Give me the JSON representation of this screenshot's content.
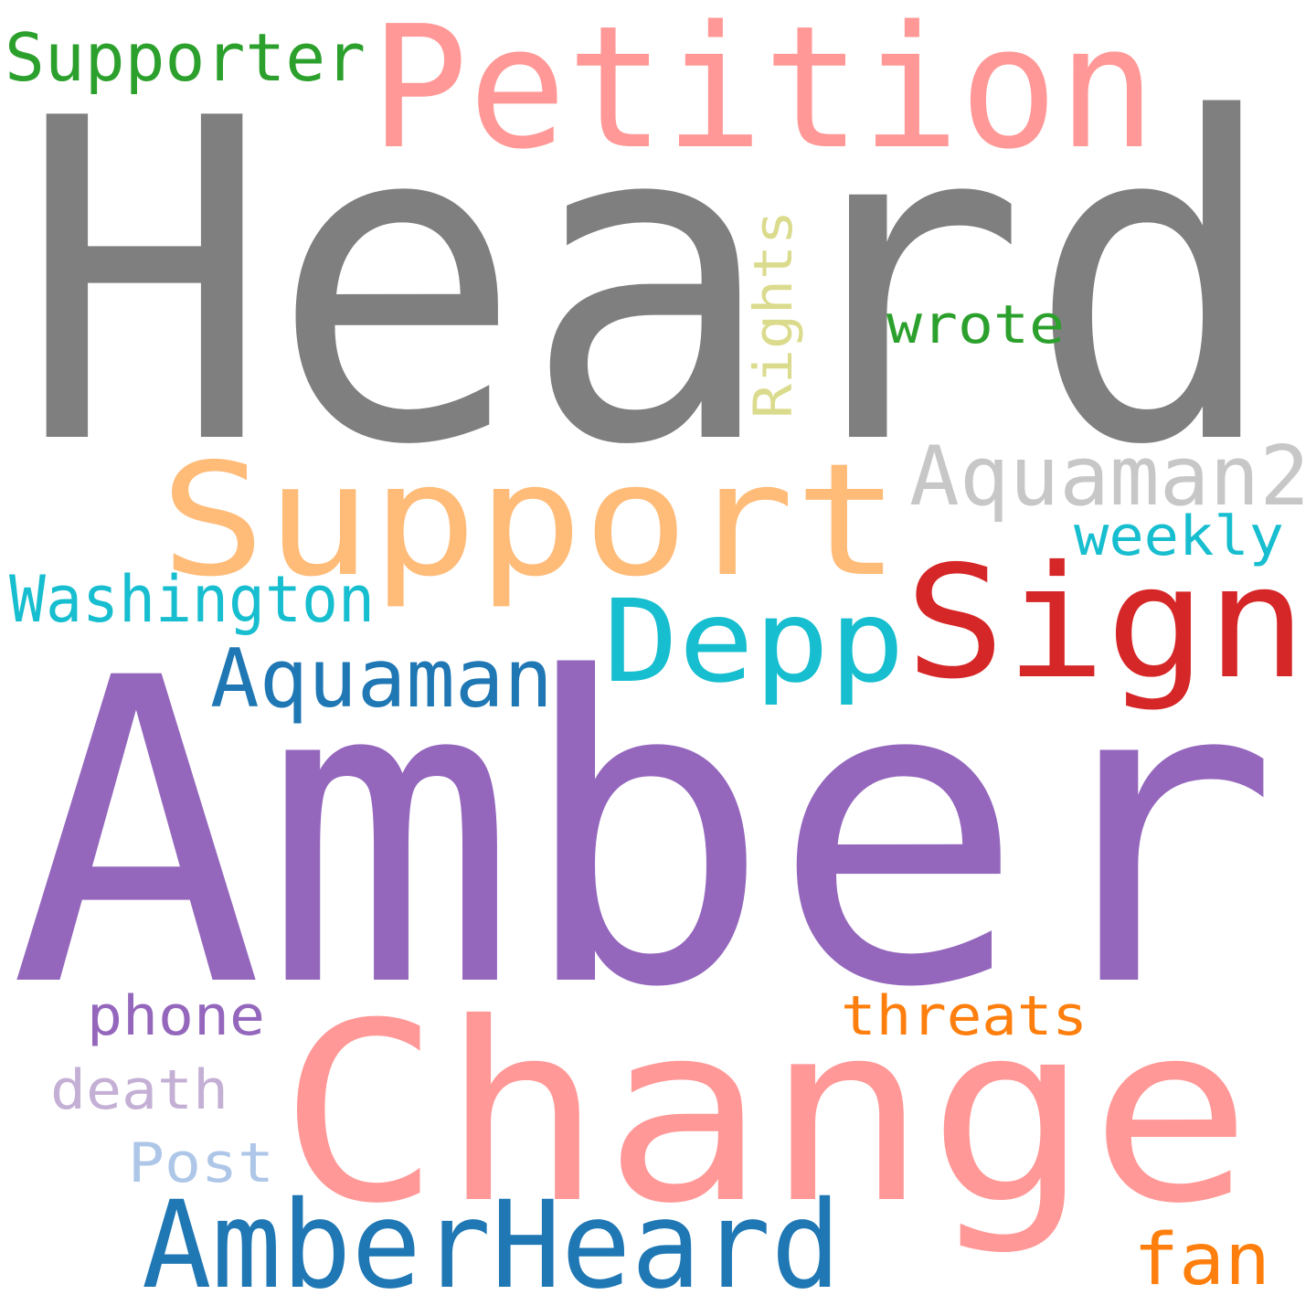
{
  "words": [
    {
      "text": "Heard",
      "color": "#7f7f7f"
    },
    {
      "text": "Amber",
      "color": "#9467bd"
    },
    {
      "text": "Change",
      "color": "#ff9896"
    },
    {
      "text": "Petition",
      "color": "#ff9896"
    },
    {
      "text": "Support",
      "color": "#ffbb78"
    },
    {
      "text": "Sign",
      "color": "#d62728"
    },
    {
      "text": "Depp",
      "color": "#17becf"
    },
    {
      "text": "AmberHeard",
      "color": "#1f77b4"
    },
    {
      "text": "Aquaman2",
      "color": "#c7c7c7"
    },
    {
      "text": "Aquaman",
      "color": "#1f77b4"
    },
    {
      "text": "Supporter",
      "color": "#2ca02c"
    },
    {
      "text": "Washington",
      "color": "#17becf"
    },
    {
      "text": "weekly",
      "color": "#17becf"
    },
    {
      "text": "wrote",
      "color": "#2ca02c"
    },
    {
      "text": "Rights",
      "color": "#dbdb8d"
    },
    {
      "text": "threats",
      "color": "#ff7f0e"
    },
    {
      "text": "phone",
      "color": "#9467bd"
    },
    {
      "text": "death",
      "color": "#c5b0d5"
    },
    {
      "text": "Post",
      "color": "#aec7e8"
    },
    {
      "text": "fan",
      "color": "#ff7f0e"
    }
  ]
}
